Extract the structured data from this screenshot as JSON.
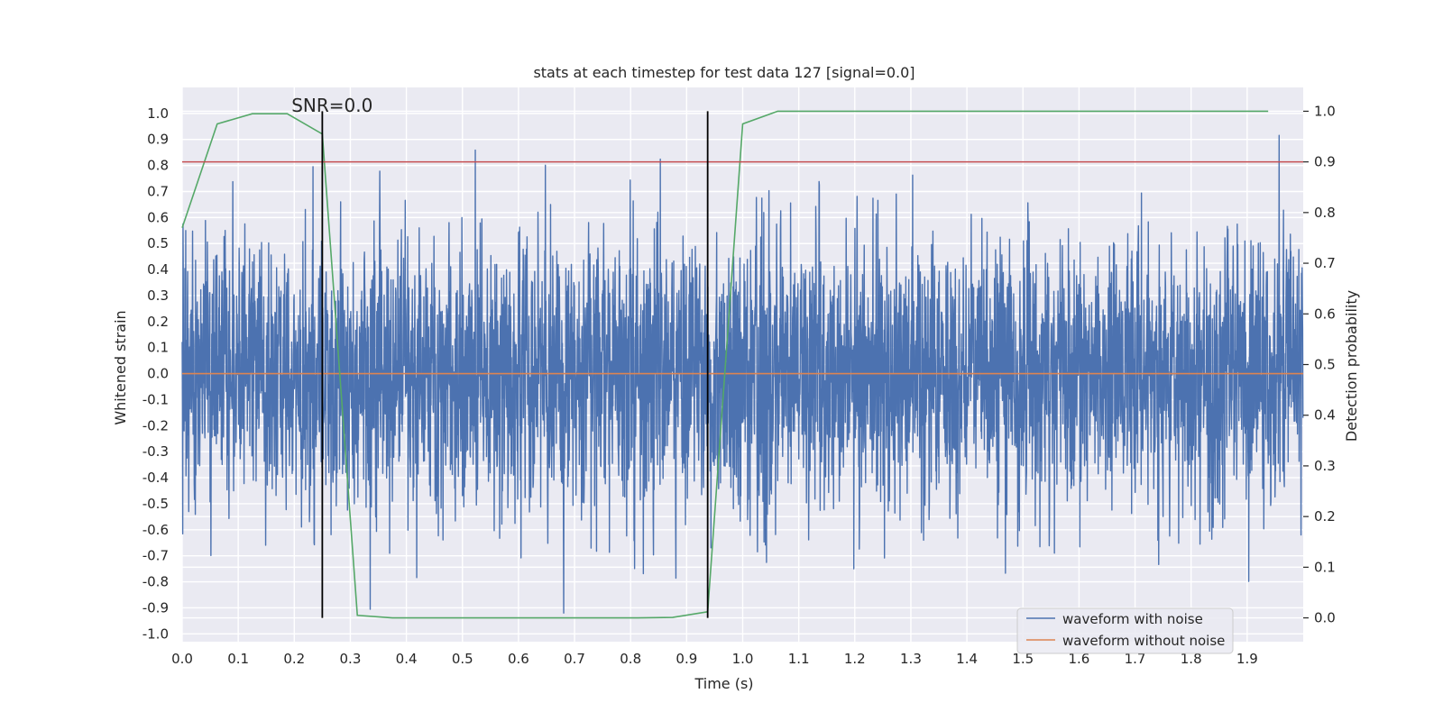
{
  "chart_data": {
    "type": "line",
    "title": "stats at each timestep for test data 127 [signal=0.0]",
    "xlabel": "Time (s)",
    "ylabel": "Whitened strain",
    "y2label": "Detection probability",
    "xlim": [
      0.0,
      2.0
    ],
    "ylim": [
      -1.03,
      1.1
    ],
    "y2lim": [
      -0.047,
      1.047
    ],
    "grid": true,
    "xticks": [
      0.0,
      0.1,
      0.2,
      0.3,
      0.4,
      0.5,
      0.6,
      0.7,
      0.8,
      0.9,
      1.0,
      1.1,
      1.2,
      1.3,
      1.4,
      1.5,
      1.6,
      1.7,
      1.8,
      1.9
    ],
    "xtick_labels": [
      "0.0",
      "0.1",
      "0.2",
      "0.3",
      "0.4",
      "0.5",
      "0.6",
      "0.7",
      "0.8",
      "0.9",
      "1.0",
      "1.1",
      "1.2",
      "1.3",
      "1.4",
      "1.5",
      "1.6",
      "1.7",
      "1.8",
      "1.9"
    ],
    "yticks": [
      1.0,
      0.9,
      0.8,
      0.7,
      0.6,
      0.5,
      0.4,
      0.3,
      0.2,
      0.1,
      0.0,
      -0.1,
      -0.2,
      -0.3,
      -0.4,
      -0.5,
      -0.6,
      -0.7,
      -0.8,
      -0.9,
      -1.0
    ],
    "ytick_labels": [
      "1.0",
      "0.9",
      "0.8",
      "0.7",
      "0.6",
      "0.5",
      "0.4",
      "0.3",
      "0.2",
      "0.1",
      "0.0",
      "-0.1",
      "-0.2",
      "-0.3",
      "-0.4",
      "-0.5",
      "-0.6",
      "-0.7",
      "-0.8",
      "-0.9",
      "-1.0"
    ],
    "y2ticks": [
      1.0,
      0.9,
      0.8,
      0.7,
      0.6,
      0.5,
      0.4,
      0.3,
      0.2,
      0.1,
      0.0
    ],
    "y2tick_labels": [
      "1.0",
      "0.9",
      "0.8",
      "0.7",
      "0.6",
      "0.5",
      "0.4",
      "0.3",
      "0.2",
      "0.1",
      "0.0"
    ],
    "series": [
      {
        "name": "waveform with noise",
        "color": "#4c72b0",
        "axis": "left",
        "kind": "noise",
        "sample_rate": 2048,
        "x_start": 0.0,
        "x_end": 2.0,
        "sigma": 0.26,
        "seed": 127,
        "ymin_observed": -0.92,
        "ymax_observed": 1.0
      },
      {
        "name": "waveform without noise",
        "color": "#dd8452",
        "axis": "left",
        "x": [
          0.0,
          2.0
        ],
        "y": [
          0.0,
          0.0
        ]
      },
      {
        "name": "detection probability",
        "color": "#55a868",
        "axis": "right",
        "show_in_legend": false,
        "x": [
          0.0,
          0.0625,
          0.125,
          0.1875,
          0.25,
          0.3125,
          0.375,
          0.4375,
          0.5,
          0.5625,
          0.625,
          0.6875,
          0.75,
          0.8125,
          0.875,
          0.9375,
          1.0,
          1.0625,
          1.125,
          1.1875,
          1.25,
          1.3125,
          1.375,
          1.4375,
          1.5,
          1.5625,
          1.625,
          1.6875,
          1.75,
          1.8125,
          1.875,
          1.9375
        ],
        "y": [
          0.77,
          0.975,
          0.995,
          0.995,
          0.955,
          0.005,
          0.0,
          0.0,
          0.0,
          0.0,
          0.0,
          0.0,
          0.0,
          0.0,
          0.001,
          0.012,
          0.975,
          1.0,
          1.0,
          1.0,
          1.0,
          1.0,
          1.0,
          1.0,
          1.0,
          1.0,
          1.0,
          1.0,
          1.0,
          1.0,
          1.0,
          1.0
        ]
      },
      {
        "name": "threshold",
        "color": "#c44e52",
        "axis": "right",
        "show_in_legend": false,
        "x": [
          0.0,
          2.0
        ],
        "y": [
          0.9,
          0.9
        ]
      }
    ],
    "vlines": [
      {
        "x": 0.25,
        "y2_from": 0.0,
        "y2_to": 1.0,
        "color": "#000000"
      },
      {
        "x": 0.9375,
        "y2_from": 0.0,
        "y2_to": 1.0,
        "color": "#000000"
      }
    ],
    "annotation": {
      "text": "SNR=0.0",
      "x": 0.195,
      "y": 1.0
    },
    "legend": {
      "position": "lower-right",
      "entries": [
        {
          "label": "waveform with noise",
          "color": "#4c72b0"
        },
        {
          "label": "waveform without noise",
          "color": "#dd8452"
        }
      ]
    },
    "colors": {
      "plot_background": "#eaeaf2",
      "grid": "#ffffff",
      "text": "#262626"
    }
  }
}
